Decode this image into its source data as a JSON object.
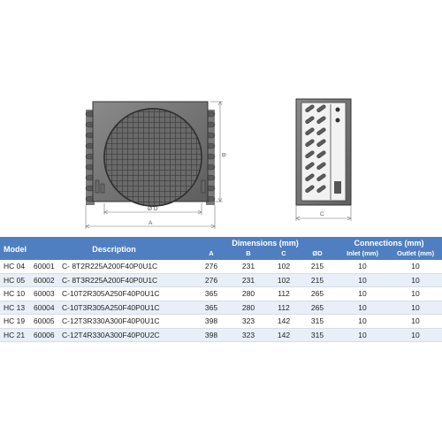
{
  "drawing": {
    "front_view": {
      "label_a": "A",
      "label_b": "B",
      "label_d": "Ø D"
    },
    "side_view": {
      "label_c": "C"
    }
  },
  "table": {
    "headers": {
      "model": "Model",
      "description": "Description",
      "dimensions_group": "Dimensions (mm)",
      "connections_group": "Connections (mm)",
      "a": "A",
      "b": "B",
      "c": "C",
      "d": "ØD",
      "inlet": "Inlet (mm)",
      "outlet": "Outlet (mm)"
    },
    "rows": [
      {
        "model": "HC 04",
        "code": "60001",
        "description": "C- 8T2R225A200F40P0U1C",
        "a": "276",
        "b": "231",
        "c": "102",
        "d": "215",
        "inlet": "10",
        "outlet": "10"
      },
      {
        "model": "HC 05",
        "code": "60002",
        "description": "C- 8T3R225A200F40P0U1C",
        "a": "276",
        "b": "231",
        "c": "102",
        "d": "215",
        "inlet": "10",
        "outlet": "10"
      },
      {
        "model": "HC 10",
        "code": "60003",
        "description": "C-10T2R305A250F40P0U1C",
        "a": "365",
        "b": "280",
        "c": "112",
        "d": "265",
        "inlet": "10",
        "outlet": "10"
      },
      {
        "model": "HC 13",
        "code": "60004",
        "description": "C-10T3R305A250F40P0U1C",
        "a": "365",
        "b": "280",
        "c": "112",
        "d": "265",
        "inlet": "10",
        "outlet": "10"
      },
      {
        "model": "HC 19",
        "code": "60005",
        "description": "C-12T3R330A300F40P0U1C",
        "a": "398",
        "b": "323",
        "c": "142",
        "d": "315",
        "inlet": "10",
        "outlet": "10"
      },
      {
        "model": "HC 21",
        "code": "60006",
        "description": "C-12T4R330A300F40P0U2C",
        "a": "398",
        "b": "323",
        "c": "142",
        "d": "315",
        "inlet": "10",
        "outlet": "10"
      }
    ]
  }
}
